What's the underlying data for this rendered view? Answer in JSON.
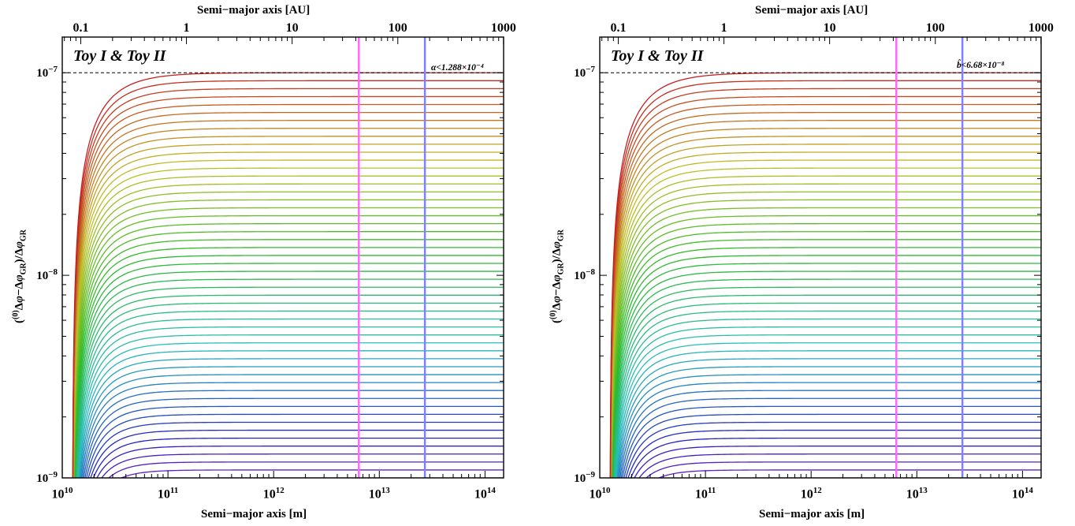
{
  "chart_data": [
    {
      "type": "line",
      "title": "",
      "xlabel_bottom": "Semi−major axis [m]",
      "xlabel_top": "Semi−major axis [AU]",
      "ylabel": "(⁰)Δφ−ΔφGR)/ΔφGR",
      "x_scale": "log",
      "y_scale": "log",
      "xlim": [
        10000000000.0,
        150000000000000.0
      ],
      "ylim": [
        1e-09,
        1.5e-07
      ],
      "x_ticks": [
        "10^10",
        "10^11",
        "10^12",
        "10^13",
        "10^14"
      ],
      "x_top_ticks": [
        "0.1",
        "1",
        "10",
        "100",
        "1000"
      ],
      "y_ticks": [
        "10^-9",
        "10^-8",
        "10^-7"
      ],
      "inset_label": "Toy I & Toy II",
      "annotation": "α<1.288×10⁻⁴",
      "bound_line": 1e-07,
      "vertical_lines_m": [
        6400000000000.0,
        27000000000000.0
      ],
      "vertical_line_colors": [
        "#ff66ff",
        "#8080ff"
      ],
      "series_description": "52 curves rising from ~1e-9 near a=1.3e10 m to asymptotes spaced logarithmically between 1e-9 and 1e-7",
      "asymptotes_start": 1e-09,
      "asymptotes_end": 1e-07,
      "series_count": 52,
      "grid": false
    },
    {
      "type": "line",
      "title": "",
      "xlabel_bottom": "Semi−major axis [m]",
      "xlabel_top": "Semi−major axis [AU]",
      "ylabel": "(⁰)Δφ−ΔφGR)/ΔφGR",
      "x_scale": "log",
      "y_scale": "log",
      "xlim": [
        10000000000.0,
        150000000000000.0
      ],
      "ylim": [
        1e-09,
        1.5e-07
      ],
      "x_ticks": [
        "10^10",
        "10^11",
        "10^12",
        "10^13",
        "10^14"
      ],
      "x_top_ticks": [
        "0.1",
        "1",
        "10",
        "100",
        "1000"
      ],
      "y_ticks": [
        "10^-9",
        "10^-8",
        "10^-7"
      ],
      "inset_label": "Toy I & Toy II",
      "annotation": "b̂<6.68×10⁻⁸",
      "bound_line": 1e-07,
      "vertical_lines_m": [
        6400000000000.0,
        27000000000000.0
      ],
      "vertical_line_colors": [
        "#ff66ff",
        "#8080ff"
      ],
      "series_description": "52 curves rising from ~1e-9 near a=1.3e10 m to asymptotes spaced logarithmically between 1e-9 and 1e-7",
      "asymptotes_start": 1e-09,
      "asymptotes_end": 1e-07,
      "series_count": 52,
      "grid": false
    }
  ],
  "panels": [
    {
      "top_axis_title": "Semi−major axis [AU]",
      "bottom_axis_title": "Semi−major axis [m]",
      "inset": "Toy I & Toy II",
      "note": "α<1.288×10⁻⁴",
      "top_ticks": [
        "0.1",
        "1",
        "10",
        "100",
        "1000"
      ],
      "bottom_ticks": [
        {
          "b": "10",
          "e": "10"
        },
        {
          "b": "10",
          "e": "11"
        },
        {
          "b": "10",
          "e": "12"
        },
        {
          "b": "10",
          "e": "13"
        },
        {
          "b": "10",
          "e": "14"
        }
      ],
      "left_ticks": [
        {
          "b": "10",
          "e": "−9"
        },
        {
          "b": "10",
          "e": "−8"
        },
        {
          "b": "10",
          "e": "−7"
        }
      ]
    },
    {
      "top_axis_title": "Semi−major axis [AU]",
      "bottom_axis_title": "Semi−major axis [m]",
      "inset": "Toy I & Toy II",
      "note": "b̂<6.68×10⁻⁸",
      "top_ticks": [
        "0.1",
        "1",
        "10",
        "100",
        "1000"
      ],
      "bottom_ticks": [
        {
          "b": "10",
          "e": "10"
        },
        {
          "b": "10",
          "e": "11"
        },
        {
          "b": "10",
          "e": "12"
        },
        {
          "b": "10",
          "e": "13"
        },
        {
          "b": "10",
          "e": "14"
        }
      ],
      "left_ticks": [
        {
          "b": "10",
          "e": "−9"
        },
        {
          "b": "10",
          "e": "−8"
        },
        {
          "b": "10",
          "e": "−7"
        }
      ]
    }
  ]
}
